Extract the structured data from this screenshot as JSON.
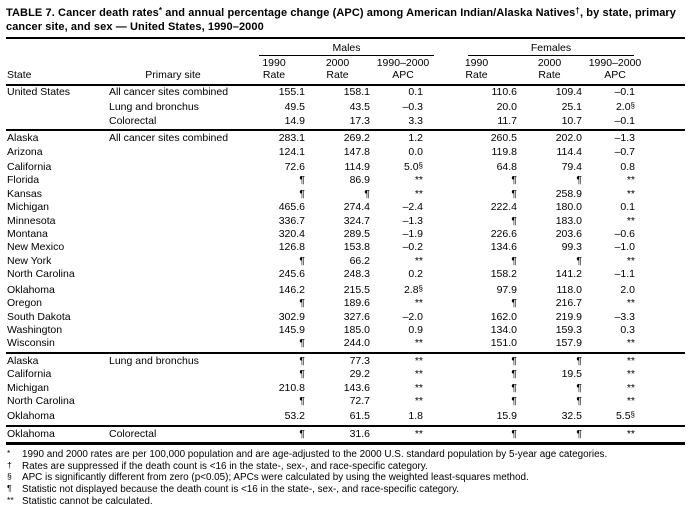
{
  "title": {
    "parts": [
      {
        "t": "TABLE 7.  Cancer death rates"
      },
      {
        "sup": "*"
      },
      {
        "t": " and annual percentage change (APC) among American Indian/Alaska Natives"
      },
      {
        "sup": "†"
      },
      {
        "t": ", by state, primary cancer site, and sex — United States, 1990–2000"
      }
    ]
  },
  "header": {
    "state": "State",
    "primary_site": "Primary site",
    "males": "Males",
    "females": "Females",
    "sub": {
      "y1990": "1990",
      "y2000": "2000",
      "range": "1990–2000",
      "rate": "Rate",
      "apc": "APC"
    }
  },
  "table": {
    "sections": [
      {
        "rows": [
          [
            "United States",
            "All cancer sites combined",
            "155.1",
            "158.1",
            "0.1",
            "110.6",
            "109.4",
            "–0.1"
          ],
          [
            "",
            "Lung and bronchus",
            "49.5",
            "43.5",
            "–0.3",
            "20.0",
            "25.1",
            "2.0§"
          ],
          [
            "",
            "Colorectal",
            "14.9",
            "17.3",
            "3.3",
            "11.7",
            "10.7",
            "–0.1"
          ]
        ]
      },
      {
        "rows": [
          [
            "Alaska",
            "All cancer sites combined",
            "283.1",
            "269.2",
            "1.2",
            "260.5",
            "202.0",
            "–1.3"
          ],
          [
            "Arizona",
            "",
            "124.1",
            "147.8",
            "0.0",
            "119.8",
            "114.4",
            "–0.7"
          ],
          [
            "California",
            "",
            "72.6",
            "114.9",
            "5.0§",
            "64.8",
            "79.4",
            "0.8"
          ],
          [
            "Florida",
            "",
            "¶",
            "86.9",
            "**",
            "¶",
            "¶",
            "**"
          ],
          [
            "Kansas",
            "",
            "¶",
            "¶",
            "**",
            "¶",
            "258.9",
            "**"
          ],
          [
            "Michigan",
            "",
            "465.6",
            "274.4",
            "–2.4",
            "222.4",
            "180.0",
            "0.1"
          ],
          [
            "Minnesota",
            "",
            "336.7",
            "324.7",
            "–1.3",
            "¶",
            "183.0",
            "**"
          ],
          [
            "Montana",
            "",
            "320.4",
            "289.5",
            "–1.9",
            "226.6",
            "203.6",
            "–0.6"
          ],
          [
            "New Mexico",
            "",
            "126.8",
            "153.8",
            "–0.2",
            "134.6",
            "99.3",
            "–1.0"
          ],
          [
            "New York",
            "",
            "¶",
            "66.2",
            "**",
            "¶",
            "¶",
            "**"
          ],
          [
            "North Carolina",
            "",
            "245.6",
            "248.3",
            "0.2",
            "158.2",
            "141.2",
            "–1.1"
          ],
          [
            "Oklahoma",
            "",
            "146.2",
            "215.5",
            "2.8§",
            "97.9",
            "118.0",
            "2.0"
          ],
          [
            "Oregon",
            "",
            "¶",
            "189.6",
            "**",
            "¶",
            "216.7",
            "**"
          ],
          [
            "South Dakota",
            "",
            "302.9",
            "327.6",
            "–2.0",
            "162.0",
            "219.9",
            "–3.3"
          ],
          [
            "Washington",
            "",
            "145.9",
            "185.0",
            "0.9",
            "134.0",
            "159.3",
            "0.3"
          ],
          [
            "Wisconsin",
            "",
            "¶",
            "244.0",
            "**",
            "151.0",
            "157.9",
            "**"
          ]
        ]
      },
      {
        "rows": [
          [
            "Alaska",
            "Lung and bronchus",
            "¶",
            "77.3",
            "**",
            "¶",
            "¶",
            "**"
          ],
          [
            "California",
            "",
            "¶",
            "29.2",
            "**",
            "¶",
            "19.5",
            "**"
          ],
          [
            "Michigan",
            "",
            "210.8",
            "143.6",
            "**",
            "¶",
            "¶",
            "**"
          ],
          [
            "North Carolina",
            "",
            "¶",
            "72.7",
            "**",
            "¶",
            "¶",
            "**"
          ],
          [
            "Oklahoma",
            "",
            "53.2",
            "61.5",
            "1.8",
            "15.9",
            "32.5",
            "5.5§"
          ]
        ]
      },
      {
        "rows": [
          [
            "Oklahoma",
            "Colorectal",
            "¶",
            "31.6",
            "**",
            "¶",
            "¶",
            "**"
          ]
        ]
      }
    ]
  },
  "footnotes": [
    {
      "marker": "*",
      "text": "1990 and 2000 rates are per 100,000 population and are age-adjusted to the 2000 U.S. standard population by 5-year age categories."
    },
    {
      "marker": "†",
      "text": "Rates are suppressed if the death count is <16 in the state-, sex-, and race-specific category."
    },
    {
      "marker": "§",
      "text": "APC is significantly different from zero (p<0.05); APCs were calculated by using the weighted least-squares method."
    },
    {
      "marker": "¶",
      "text": "Statistic not displayed because the death count is <16 in the state-, sex-, and race-specific category."
    },
    {
      "marker": "**",
      "text": "Statistic cannot be calculated."
    }
  ]
}
